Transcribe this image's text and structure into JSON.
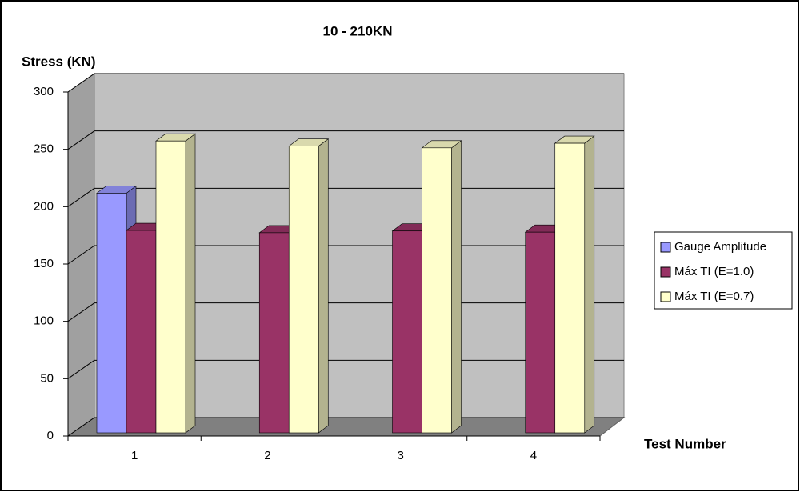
{
  "chart_data": {
    "type": "bar3d",
    "title": "10 - 210KN",
    "y_label": "Stress (KN)",
    "x_label": "Test Number",
    "categories": [
      "1",
      "2",
      "3",
      "4"
    ],
    "series": [
      {
        "name": "Gauge Amplitude",
        "color": "#9999ff",
        "values": [
          209,
          null,
          null,
          null
        ]
      },
      {
        "name": "Máx TI (E=1.0)",
        "color": "#993366",
        "values": [
          176.5,
          174.5,
          176,
          175
        ]
      },
      {
        "name": "Máx TI (E=0.7)",
        "color": "#ffffcc",
        "values": [
          254.5,
          250,
          248.5,
          252.5
        ]
      }
    ],
    "ylim": [
      0,
      300
    ],
    "yticks": [
      0,
      50,
      100,
      150,
      200,
      250,
      300
    ],
    "grid": true,
    "legend": "right"
  }
}
